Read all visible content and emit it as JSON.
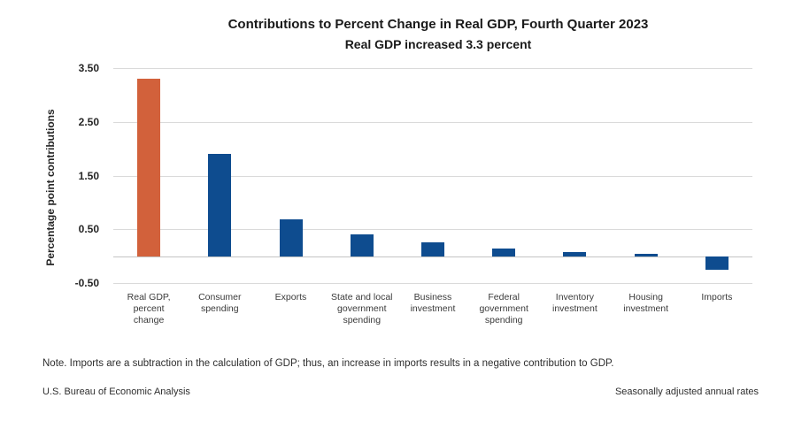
{
  "header": {
    "title": "Contributions to Percent Change in Real GDP, Fourth Quarter 2023",
    "subtitle": "Real GDP increased 3.3 percent"
  },
  "footnotes": {
    "note": "Note. Imports are a subtraction in the calculation of GDP; thus, an increase in imports results in a negative contribution to GDP.",
    "source": "U.S. Bureau of Economic Analysis",
    "rates_note": "Seasonally adjusted annual rates"
  },
  "chart_data": {
    "type": "bar",
    "title": "Contributions to Percent Change in Real GDP, Fourth Quarter 2023",
    "subtitle": "Real GDP increased 3.3 percent",
    "ylabel": "Percentage point contributions",
    "xlabel": "",
    "ylim": [
      -0.5,
      3.5
    ],
    "grid": true,
    "legend_position": "none",
    "yticks": [
      {
        "value": 3.5,
        "label": "3.50"
      },
      {
        "value": 2.5,
        "label": "2.50"
      },
      {
        "value": 1.5,
        "label": "1.50"
      },
      {
        "value": 0.5,
        "label": "0.50"
      },
      {
        "value": -0.5,
        "label": "-0.50"
      }
    ],
    "zero_line_value": 0,
    "categories": [
      [
        "Real GDP,",
        "percent",
        "change"
      ],
      [
        "Consumer",
        "spending"
      ],
      [
        "Exports"
      ],
      [
        "State and local",
        "government",
        "spending"
      ],
      [
        "Business",
        "investment"
      ],
      [
        "Federal",
        "government",
        "spending"
      ],
      [
        "Inventory",
        "investment"
      ],
      [
        "Housing",
        "investment"
      ],
      [
        "Imports"
      ]
    ],
    "values": [
      3.3,
      1.91,
      0.68,
      0.41,
      0.26,
      0.15,
      0.07,
      0.04,
      -0.25
    ],
    "bar_colors": [
      "#D2613B",
      "#0E4C8F",
      "#0E4C8F",
      "#0E4C8F",
      "#0E4C8F",
      "#0E4C8F",
      "#0E4C8F",
      "#0E4C8F",
      "#0E4C8F"
    ],
    "colors": {
      "highlight_bar": "#D2613B",
      "default_bar": "#0E4C8F",
      "gridline": "#DADADA",
      "zero_line": "#C4C4C4"
    }
  }
}
